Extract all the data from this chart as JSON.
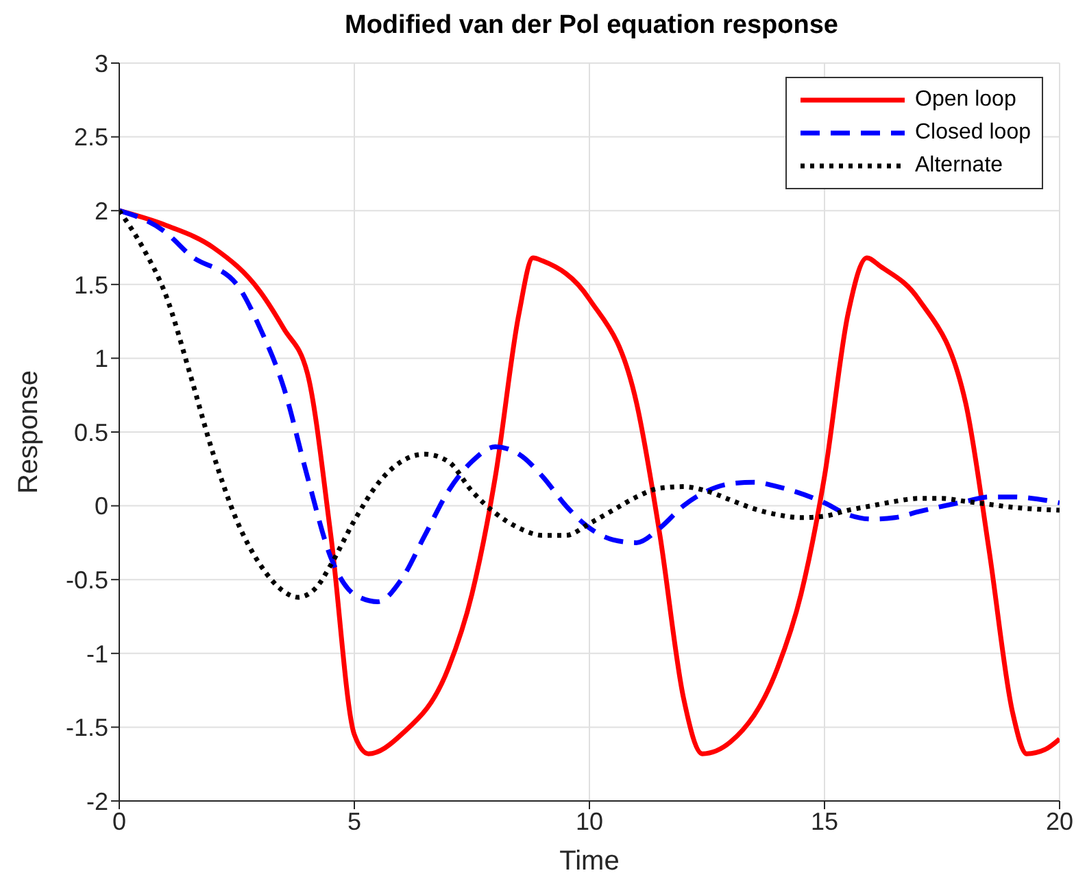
{
  "chart_data": {
    "type": "line",
    "title": "Modified van der Pol equation response",
    "xlabel": "Time",
    "ylabel": "Response",
    "xlim": [
      0,
      20
    ],
    "ylim": [
      -2,
      3
    ],
    "xticks": [
      0,
      5,
      10,
      15,
      20
    ],
    "yticks": [
      -2,
      -1.5,
      -1,
      -0.5,
      0,
      0.5,
      1,
      1.5,
      2,
      2.5,
      3
    ],
    "grid": true,
    "legend": "top right",
    "series": [
      {
        "name": "Open loop",
        "color": "#ff0000",
        "line_style": "solid",
        "x": [
          0,
          1,
          2,
          3,
          3.5,
          4,
          4.5,
          5,
          5.3,
          6,
          7,
          7.5,
          8,
          8.5,
          8.8,
          9,
          10,
          11,
          11.5,
          12,
          12.4,
          13,
          14,
          14.5,
          15,
          15.5,
          15.9,
          16.2,
          17,
          18,
          18.5,
          19,
          19.3,
          19.7,
          20
        ],
        "values": [
          2,
          1.9,
          1.75,
          1.45,
          1.2,
          0.9,
          -0.2,
          -1.55,
          -1.68,
          -1.55,
          -1.1,
          -0.6,
          0.2,
          1.3,
          1.68,
          1.66,
          1.4,
          0.7,
          -0.2,
          -1.3,
          -1.68,
          -1.6,
          -1.1,
          -0.6,
          0.2,
          1.3,
          1.68,
          1.62,
          1.4,
          0.7,
          -0.3,
          -1.4,
          -1.68,
          -1.65,
          -1.58
        ]
      },
      {
        "name": "Closed loop",
        "color": "#0000ff",
        "line_style": "dashed",
        "x": [
          0,
          1,
          1.5,
          2.5,
          3,
          3.5,
          4,
          4.5,
          5,
          5.5,
          6,
          6.5,
          7,
          7.5,
          8,
          8.5,
          9,
          9.5,
          10,
          10.5,
          11,
          11.5,
          12,
          12.5,
          13,
          13.5,
          14,
          15,
          15.5,
          16,
          16.5,
          17,
          18,
          18.5,
          19,
          20
        ],
        "values": [
          2,
          1.85,
          1.7,
          1.5,
          1.2,
          0.8,
          0.2,
          -0.35,
          -0.6,
          -0.65,
          -0.5,
          -0.2,
          0.1,
          0.3,
          0.4,
          0.35,
          0.2,
          0,
          -0.15,
          -0.23,
          -0.25,
          -0.15,
          0,
          0.1,
          0.15,
          0.16,
          0.13,
          0.02,
          -0.06,
          -0.09,
          -0.08,
          -0.04,
          0.03,
          0.06,
          0.06,
          0.02
        ]
      },
      {
        "name": "Alternate",
        "color": "#000000",
        "line_style": "dotted",
        "x": [
          0,
          0.5,
          1,
          1.5,
          2,
          2.5,
          3,
          3.5,
          3.8,
          4.2,
          4.5,
          5,
          5.5,
          6,
          6.5,
          7,
          7.5,
          8,
          8.5,
          9,
          9.5,
          10,
          10.5,
          11,
          11.5,
          12,
          12.5,
          13,
          13.5,
          14,
          14.5,
          15,
          15.5,
          16,
          16.5,
          17,
          17.5,
          18,
          18.5,
          19,
          20
        ],
        "values": [
          2,
          1.75,
          1.42,
          0.9,
          0.35,
          -0.1,
          -0.4,
          -0.58,
          -0.62,
          -0.55,
          -0.4,
          -0.1,
          0.15,
          0.3,
          0.35,
          0.3,
          0.1,
          -0.05,
          -0.15,
          -0.2,
          -0.2,
          -0.12,
          -0.03,
          0.06,
          0.12,
          0.13,
          0.1,
          0.04,
          -0.02,
          -0.06,
          -0.08,
          -0.07,
          -0.03,
          0,
          0.03,
          0.05,
          0.05,
          0.03,
          0.01,
          -0.01,
          -0.03
        ]
      }
    ]
  }
}
